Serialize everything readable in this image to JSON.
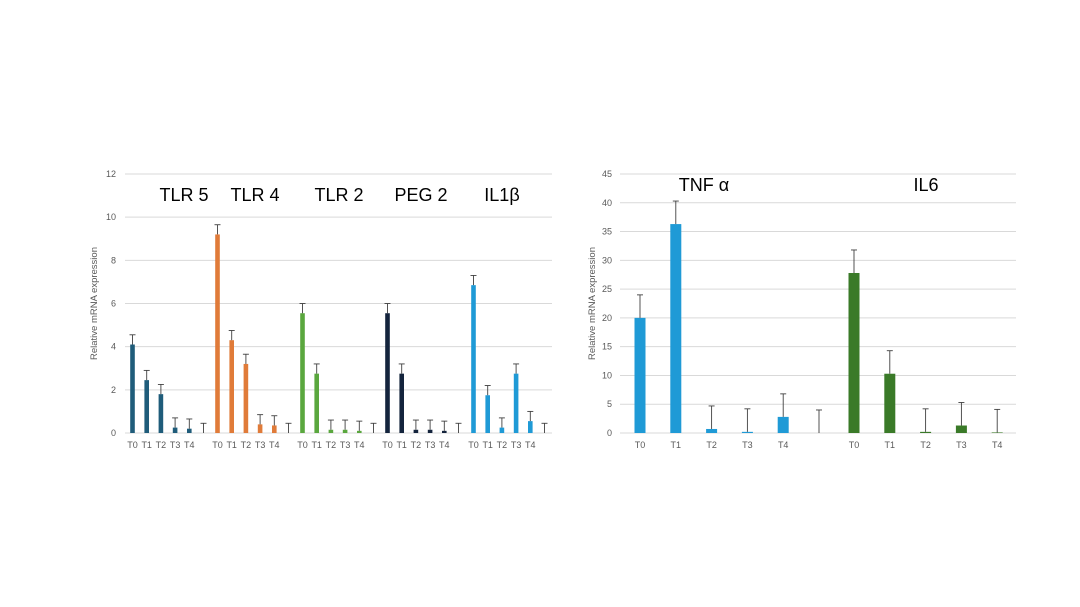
{
  "chart_data": [
    {
      "type": "bar",
      "ylabel": "Relative mRNA expression",
      "ylim": [
        0,
        12
      ],
      "yticks": [
        0,
        2,
        4,
        6,
        8,
        10,
        12
      ],
      "grid": true,
      "groups": [
        {
          "label": "TLR 5",
          "color": "#1f5c7a",
          "categories": [
            "T0",
            "T1",
            "T2",
            "T3",
            "T4"
          ],
          "values": [
            4.1,
            2.45,
            1.8,
            0.25,
            0.2
          ],
          "errors": [
            0.45,
            0.45,
            0.45,
            0.45,
            0.45
          ]
        },
        {
          "label": "TLR 4",
          "color": "#e07b39",
          "categories": [
            "T0",
            "T1",
            "T2",
            "T3",
            "T4"
          ],
          "values": [
            9.2,
            4.3,
            3.2,
            0.4,
            0.35
          ],
          "errors": [
            0.45,
            0.45,
            0.45,
            0.45,
            0.45
          ]
        },
        {
          "label": "TLR 2",
          "color": "#5aa73e",
          "categories": [
            "T0",
            "T1",
            "T2",
            "T3",
            "T4"
          ],
          "values": [
            5.55,
            2.75,
            0.15,
            0.15,
            0.1
          ],
          "errors": [
            0.45,
            0.45,
            0.45,
            0.45,
            0.45
          ]
        },
        {
          "label": "PEG 2",
          "color": "#14243d",
          "categories": [
            "T0",
            "T1",
            "T2",
            "T3",
            "T4"
          ],
          "values": [
            5.55,
            2.75,
            0.15,
            0.15,
            0.1
          ],
          "errors": [
            0.45,
            0.45,
            0.45,
            0.45,
            0.45
          ]
        },
        {
          "label": "IL1β",
          "color": "#1f9ad6",
          "categories": [
            "T0",
            "T1",
            "T2",
            "T3",
            "T4"
          ],
          "values": [
            6.85,
            1.75,
            0.25,
            2.75,
            0.55
          ],
          "errors": [
            0.45,
            0.45,
            0.45,
            0.45,
            0.45
          ]
        }
      ],
      "trailing_error_bar": {
        "value": 0,
        "error": 0.45
      }
    },
    {
      "type": "bar",
      "ylabel": "Relative mRNA expression",
      "ylim": [
        0,
        45
      ],
      "yticks": [
        0,
        5,
        10,
        15,
        20,
        25,
        30,
        35,
        40,
        45
      ],
      "grid": true,
      "groups": [
        {
          "label": "TNF α",
          "color": "#1f9ad6",
          "categories": [
            "T0",
            "T1",
            "T2",
            "T3",
            "T4"
          ],
          "values": [
            20,
            36.3,
            0.7,
            0.2,
            2.8
          ],
          "errors": [
            4.0,
            4.0,
            4.0,
            4.0,
            4.0
          ]
        },
        {
          "label": "IL6",
          "color": "#3a7a28",
          "categories": [
            "T0",
            "T1",
            "T2",
            "T3",
            "T4"
          ],
          "values": [
            27.8,
            10.3,
            0.2,
            1.3,
            0.1
          ],
          "errors": [
            4.0,
            4.0,
            4.0,
            4.0,
            4.0
          ]
        }
      ],
      "gap_error_bar": {
        "value": 0,
        "error": 4.0
      }
    }
  ]
}
